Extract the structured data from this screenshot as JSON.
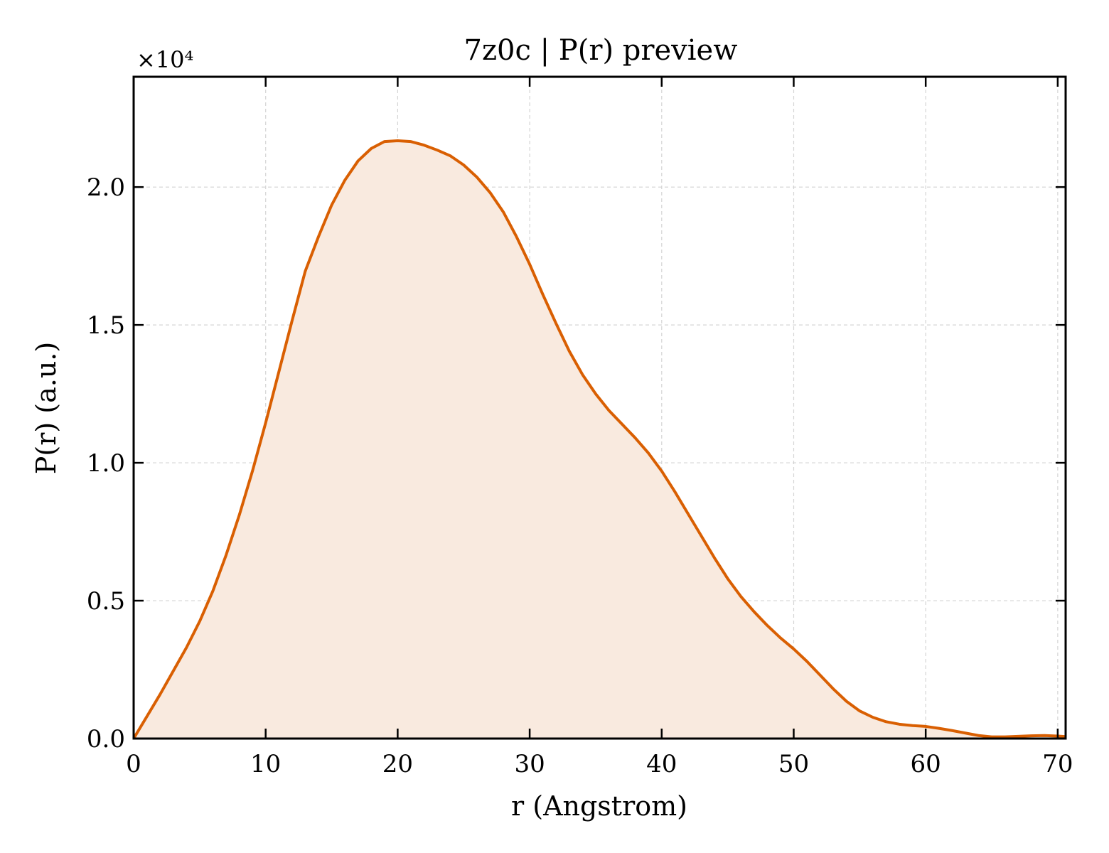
{
  "chart_data": {
    "type": "area",
    "title": "7z0c | P(r) preview",
    "xlabel": "r (Angstrom)",
    "ylabel": "P(r) (a.u.)",
    "y_multiplier_label": "×10⁴",
    "xlim": [
      0,
      70.6
    ],
    "ylim": [
      0,
      2.4
    ],
    "xticks": [
      0,
      10,
      20,
      30,
      40,
      50,
      60,
      70
    ],
    "xtick_labels": [
      "0",
      "10",
      "20",
      "30",
      "40",
      "50",
      "60",
      "70"
    ],
    "yticks": [
      0,
      0.5,
      1.0,
      1.5,
      2.0
    ],
    "ytick_labels": [
      "0.0",
      "0.5",
      "1.0",
      "1.5",
      "2.0"
    ],
    "grid": true,
    "colors": {
      "line": "#d95f02",
      "fill": "#f9eadf",
      "grid": "#d4d4d4"
    },
    "series": [
      {
        "x": [
          0,
          1,
          2,
          3,
          4,
          5,
          6,
          7,
          8,
          9,
          10,
          11,
          12,
          13,
          14,
          15,
          16,
          17,
          18,
          19,
          20,
          21,
          22,
          23,
          24,
          25,
          26,
          27,
          28,
          29,
          30,
          31,
          32,
          33,
          34,
          35,
          36,
          37,
          38,
          39,
          40,
          41,
          42,
          43,
          44,
          45,
          46,
          47,
          48,
          49,
          50,
          51,
          52,
          53,
          54,
          55,
          56,
          57,
          58,
          59,
          60,
          61,
          62,
          63,
          64,
          65,
          66,
          67,
          68,
          69,
          70,
          70.6
        ],
        "y": [
          0,
          0.08,
          0.16,
          0.245,
          0.33,
          0.425,
          0.535,
          0.665,
          0.81,
          0.97,
          1.145,
          1.33,
          1.515,
          1.695,
          1.82,
          1.935,
          2.025,
          2.095,
          2.14,
          2.165,
          2.168,
          2.165,
          2.152,
          2.134,
          2.113,
          2.08,
          2.036,
          1.98,
          1.91,
          1.82,
          1.72,
          1.61,
          1.505,
          1.405,
          1.32,
          1.25,
          1.19,
          1.14,
          1.09,
          1.035,
          0.97,
          0.895,
          0.815,
          0.735,
          0.655,
          0.58,
          0.515,
          0.46,
          0.41,
          0.365,
          0.325,
          0.28,
          0.23,
          0.18,
          0.135,
          0.1,
          0.077,
          0.061,
          0.052,
          0.047,
          0.044,
          0.037,
          0.029,
          0.02,
          0.011,
          0.006,
          0.006,
          0.008,
          0.01,
          0.011,
          0.009,
          0.007
        ]
      }
    ]
  }
}
